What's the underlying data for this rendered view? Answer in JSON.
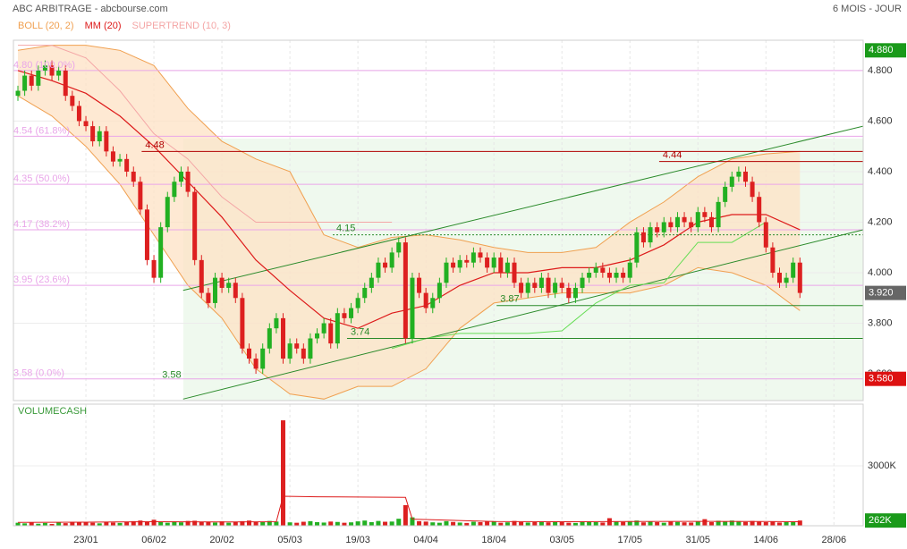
{
  "title": "ABC ARBITRAGE - abcbourse.com",
  "period": "6 MOIS - JOUR",
  "chart_data": [
    {
      "type": "candlestick",
      "xlim": [
        -0.66,
        124.3
      ],
      "ylim": [
        3.494,
        4.92
      ],
      "xticks": [
        {
          "value": 10,
          "label": "23/01"
        },
        {
          "value": 20,
          "label": "06/02"
        },
        {
          "value": 30,
          "label": "20/02"
        },
        {
          "value": 40,
          "label": "05/03"
        },
        {
          "value": 50,
          "label": "19/03"
        },
        {
          "value": 60,
          "label": "04/04"
        },
        {
          "value": 70,
          "label": "18/04"
        },
        {
          "value": 80,
          "label": "03/05"
        },
        {
          "value": 90,
          "label": "17/05"
        },
        {
          "value": 100,
          "label": "31/05"
        },
        {
          "value": 110,
          "label": "14/06"
        },
        {
          "value": 120,
          "label": "28/06"
        }
      ],
      "yticks": [
        {
          "value": 3.6,
          "label": "3.600"
        },
        {
          "value": 3.8,
          "label": "3.800"
        },
        {
          "value": 4.0,
          "label": "4.000"
        },
        {
          "value": 4.2,
          "label": "4.200"
        },
        {
          "value": 4.4,
          "label": "4.400"
        },
        {
          "value": 4.6,
          "label": "4.600"
        },
        {
          "value": 4.8,
          "label": "4.800"
        }
      ],
      "grid": true,
      "up_color": "#22b022",
      "down_color": "#dd2020",
      "open": [
        4.7,
        4.72,
        4.78,
        4.74,
        4.8,
        4.82,
        4.78,
        4.8,
        4.7,
        4.66,
        4.6,
        4.58,
        4.52,
        4.56,
        4.48,
        4.44,
        4.45,
        4.4,
        4.36,
        4.25,
        4.05,
        3.98,
        4.18,
        4.3,
        4.36,
        4.4,
        4.32,
        4.05,
        3.92,
        3.88,
        3.98,
        3.94,
        3.96,
        3.9,
        3.7,
        3.66,
        3.62,
        3.7,
        3.78,
        3.82,
        3.66,
        3.72,
        3.7,
        3.66,
        3.74,
        3.76,
        3.8,
        3.72,
        3.84,
        3.82,
        3.86,
        3.9,
        3.94,
        3.98,
        4.04,
        4.02,
        4.08,
        4.12,
        3.74,
        3.98,
        3.92,
        3.86,
        3.9,
        3.96,
        4.04,
        4.02,
        4.05,
        4.04,
        4.08,
        4.06,
        4.02,
        4.06,
        4.0,
        4.04,
        3.96,
        3.92,
        3.96,
        3.94,
        3.98,
        3.92,
        3.96,
        3.94,
        3.9,
        3.94,
        3.98,
        4.0,
        4.02,
        4.0,
        3.98,
        4.0,
        3.98,
        4.04,
        4.16,
        4.12,
        4.18,
        4.16,
        4.2,
        4.18,
        4.22,
        4.2,
        4.18,
        4.24,
        4.22,
        4.18,
        4.28,
        4.34,
        4.38,
        4.4,
        4.36,
        4.3,
        4.2,
        4.1,
        4.0,
        3.96,
        3.98,
        4.04
      ],
      "high": [
        4.74,
        4.8,
        4.8,
        4.82,
        4.84,
        4.84,
        4.82,
        4.82,
        4.72,
        4.68,
        4.62,
        4.6,
        4.58,
        4.58,
        4.5,
        4.47,
        4.47,
        4.42,
        4.38,
        4.27,
        4.07,
        4.2,
        4.32,
        4.38,
        4.42,
        4.42,
        4.34,
        4.07,
        3.94,
        4.0,
        4.0,
        3.98,
        3.98,
        3.92,
        3.72,
        3.68,
        3.72,
        3.8,
        3.84,
        3.84,
        3.74,
        3.74,
        3.72,
        3.76,
        3.78,
        3.82,
        3.82,
        3.86,
        3.86,
        3.88,
        3.92,
        3.96,
        4.0,
        4.06,
        4.06,
        4.1,
        4.14,
        4.14,
        4.0,
        4.0,
        3.94,
        3.92,
        3.98,
        4.06,
        4.06,
        4.07,
        4.07,
        4.1,
        4.1,
        4.08,
        4.08,
        4.08,
        4.06,
        4.06,
        3.98,
        3.98,
        3.98,
        4.0,
        4.0,
        3.98,
        3.98,
        3.96,
        3.96,
        4.0,
        4.02,
        4.04,
        4.04,
        4.02,
        4.02,
        4.02,
        4.06,
        4.18,
        4.18,
        4.2,
        4.2,
        4.22,
        4.22,
        4.24,
        4.24,
        4.22,
        4.26,
        4.26,
        4.24,
        4.3,
        4.36,
        4.4,
        4.42,
        4.42,
        4.38,
        4.32,
        4.22,
        4.12,
        4.02,
        4.0,
        4.06,
        4.06
      ],
      "low": [
        4.68,
        4.7,
        4.72,
        4.72,
        4.78,
        4.76,
        4.76,
        4.68,
        4.64,
        4.58,
        4.56,
        4.5,
        4.5,
        4.46,
        4.42,
        4.42,
        4.38,
        4.34,
        4.23,
        4.03,
        3.96,
        3.96,
        4.16,
        4.28,
        4.34,
        4.3,
        4.03,
        3.9,
        3.86,
        3.86,
        3.92,
        3.92,
        3.88,
        3.68,
        3.64,
        3.6,
        3.6,
        3.68,
        3.76,
        3.64,
        3.64,
        3.68,
        3.64,
        3.64,
        3.72,
        3.74,
        3.7,
        3.7,
        3.8,
        3.8,
        3.84,
        3.88,
        3.92,
        3.96,
        4.0,
        4.0,
        4.06,
        3.72,
        3.72,
        3.9,
        3.84,
        3.84,
        3.88,
        3.94,
        4.0,
        4.0,
        4.02,
        4.02,
        4.04,
        4.0,
        4.0,
        3.98,
        3.98,
        3.94,
        3.9,
        3.9,
        3.92,
        3.92,
        3.9,
        3.9,
        3.92,
        3.88,
        3.88,
        3.92,
        3.96,
        3.98,
        3.98,
        3.96,
        3.96,
        3.96,
        3.96,
        4.02,
        4.1,
        4.1,
        4.14,
        4.14,
        4.16,
        4.16,
        4.18,
        4.16,
        4.16,
        4.2,
        4.16,
        4.16,
        4.26,
        4.32,
        4.36,
        4.34,
        4.28,
        4.18,
        4.08,
        3.98,
        3.94,
        3.94,
        3.96,
        3.9
      ],
      "close": [
        4.72,
        4.78,
        4.74,
        4.8,
        4.82,
        4.78,
        4.8,
        4.7,
        4.66,
        4.6,
        4.58,
        4.52,
        4.56,
        4.48,
        4.44,
        4.45,
        4.4,
        4.36,
        4.25,
        4.05,
        3.98,
        4.18,
        4.3,
        4.36,
        4.4,
        4.32,
        4.05,
        3.92,
        3.88,
        3.98,
        3.94,
        3.96,
        3.9,
        3.7,
        3.66,
        3.62,
        3.7,
        3.78,
        3.82,
        3.66,
        3.72,
        3.7,
        3.66,
        3.74,
        3.76,
        3.8,
        3.72,
        3.84,
        3.82,
        3.86,
        3.9,
        3.94,
        3.98,
        4.04,
        4.02,
        4.08,
        4.12,
        3.74,
        3.98,
        3.92,
        3.86,
        3.9,
        3.96,
        4.04,
        4.02,
        4.05,
        4.04,
        4.08,
        4.06,
        4.02,
        4.06,
        4.0,
        4.04,
        3.96,
        3.92,
        3.96,
        3.94,
        3.98,
        3.92,
        3.96,
        3.94,
        3.9,
        3.94,
        3.98,
        4.0,
        4.02,
        4.0,
        3.98,
        4.0,
        3.98,
        4.04,
        4.16,
        4.12,
        4.18,
        4.16,
        4.2,
        4.18,
        4.22,
        4.2,
        4.18,
        4.24,
        4.22,
        4.18,
        4.28,
        4.34,
        4.38,
        4.4,
        4.36,
        4.3,
        4.2,
        4.1,
        4.0,
        3.96,
        3.98,
        4.04,
        3.92
      ],
      "overlay_x": [
        0,
        5,
        10,
        15,
        20,
        25,
        30,
        35,
        40,
        45,
        50,
        55,
        60,
        65,
        70,
        75,
        80,
        85,
        90,
        95,
        100,
        105,
        110,
        115
      ],
      "series": [
        {
          "name": "BOLL (20, 2)",
          "color": "#f0a050",
          "fill": "#fde2c4",
          "upper": [
            4.88,
            4.9,
            4.9,
            4.88,
            4.82,
            4.65,
            4.52,
            4.45,
            4.4,
            4.15,
            4.1,
            4.14,
            4.15,
            4.13,
            4.1,
            4.08,
            4.08,
            4.1,
            4.2,
            4.28,
            4.38,
            4.45,
            4.47,
            4.48
          ],
          "lower": [
            4.7,
            4.62,
            4.5,
            4.35,
            4.15,
            3.95,
            3.82,
            3.62,
            3.52,
            3.5,
            3.55,
            3.55,
            3.62,
            3.78,
            3.88,
            3.9,
            3.92,
            3.92,
            3.92,
            3.95,
            4.02,
            4.0,
            3.95,
            3.85
          ]
        },
        {
          "name": "MM (20)",
          "color": "#dd1a1a",
          "values": [
            4.8,
            4.76,
            4.71,
            4.62,
            4.5,
            4.36,
            4.22,
            4.05,
            3.93,
            3.82,
            3.78,
            3.84,
            3.87,
            3.95,
            4.0,
            4.0,
            4.02,
            4.02,
            4.05,
            4.11,
            4.2,
            4.23,
            4.23,
            4.17
          ]
        },
        {
          "name": "SUPERTREND (10, 3)",
          "color": "#f4a6a6",
          "color_low": "#66dd55",
          "upper": [
            4.9,
            4.9,
            4.85,
            4.72,
            4.55,
            4.45,
            4.3,
            4.2,
            4.2,
            4.2,
            4.2,
            4.2,
            null,
            null,
            null,
            null,
            null,
            null,
            null,
            null,
            null,
            null,
            null,
            null
          ],
          "lower": [
            null,
            null,
            null,
            null,
            null,
            null,
            null,
            null,
            null,
            null,
            null,
            3.7,
            3.74,
            3.76,
            3.76,
            3.76,
            3.77,
            3.88,
            3.95,
            3.96,
            4.12,
            4.12,
            4.2,
            null
          ]
        }
      ],
      "channel_color": "#2a8a2a",
      "channel": [
        {
          "x": [
            24.3,
            124.3
          ],
          "y": [
            3.5,
            4.17
          ]
        },
        {
          "x": [
            24.3,
            124.3
          ],
          "y": [
            3.93,
            4.58
          ]
        }
      ],
      "fib_color": "#e9a6e9",
      "fib_levels": [
        {
          "value": 4.8,
          "label": "4.80 (100.0%)"
        },
        {
          "value": 4.54,
          "label": "4.54 (61.8%)"
        },
        {
          "value": 4.35,
          "label": "4.35 (50.0%)"
        },
        {
          "value": 4.17,
          "label": "4.17 (38.2%)"
        },
        {
          "value": 3.95,
          "label": "3.95 (23.6%)"
        },
        {
          "value": 3.58,
          "label": "3.58 (0.0%)"
        }
      ],
      "levels": [
        {
          "value": 4.48,
          "x": 18.2,
          "color": "#b00000",
          "style": "solid"
        },
        {
          "value": 4.44,
          "x": 94.3,
          "color": "#b00000",
          "style": "solid"
        },
        {
          "value": 4.15,
          "x": 46.3,
          "color": "#2a8a2a",
          "style": "dotted"
        },
        {
          "value": 3.87,
          "x": 70.4,
          "color": "#2a8a2a",
          "style": "solid"
        },
        {
          "value": 3.74,
          "x": 48.4,
          "color": "#2a8a2a",
          "style": "solid"
        }
      ],
      "low_label": {
        "value": 3.58,
        "x": 21.2,
        "color": "#2a8a2a"
      },
      "price_labels": [
        {
          "value": 4.88,
          "label": "4.880",
          "color": "#1a9a1a"
        },
        {
          "value": 3.92,
          "label": "3.920",
          "color": "#666666"
        },
        {
          "value": 3.58,
          "label": "3.580",
          "color": "#dd1111"
        }
      ]
    },
    {
      "type": "bar",
      "title": "VOLUMECASH",
      "ylim": [
        0,
        6090
      ],
      "yticks": [
        {
          "value": 3000,
          "label": "3000K"
        }
      ],
      "values": [
        150,
        120,
        180,
        100,
        140,
        90,
        160,
        130,
        200,
        170,
        180,
        150,
        120,
        200,
        160,
        140,
        190,
        230,
        260,
        210,
        300,
        180,
        150,
        220,
        170,
        240,
        250,
        200,
        180,
        160,
        220,
        150,
        190,
        230,
        260,
        200,
        180,
        240,
        210,
        5280,
        170,
        150,
        200,
        230,
        180,
        160,
        210,
        190,
        150,
        170,
        220,
        260,
        180,
        240,
        200,
        210,
        350,
        1030,
        420,
        230,
        210,
        170,
        150,
        230,
        190,
        160,
        140,
        200,
        180,
        210,
        230,
        150,
        170,
        240,
        190,
        160,
        180,
        200,
        170,
        210,
        190,
        150,
        140,
        220,
        200,
        180,
        160,
        380,
        210,
        190,
        230,
        260,
        170,
        210,
        180,
        150,
        200,
        190,
        170,
        160,
        210,
        330,
        180,
        250,
        220,
        260,
        230,
        190,
        240,
        200,
        180,
        210,
        160,
        190,
        200,
        262
      ],
      "ma": {
        "color": "#dd1a1a",
        "x": [
          0,
          10,
          20,
          30,
          38,
          39,
          44,
          57,
          58,
          70,
          80,
          90,
          100,
          110,
          115
        ],
        "values": [
          170,
          180,
          200,
          190,
          200,
          1480,
          1450,
          1420,
          330,
          210,
          200,
          210,
          220,
          210,
          200
        ]
      },
      "last_label": {
        "value": 262,
        "label": "262K",
        "color": "#1a9a1a"
      }
    }
  ]
}
